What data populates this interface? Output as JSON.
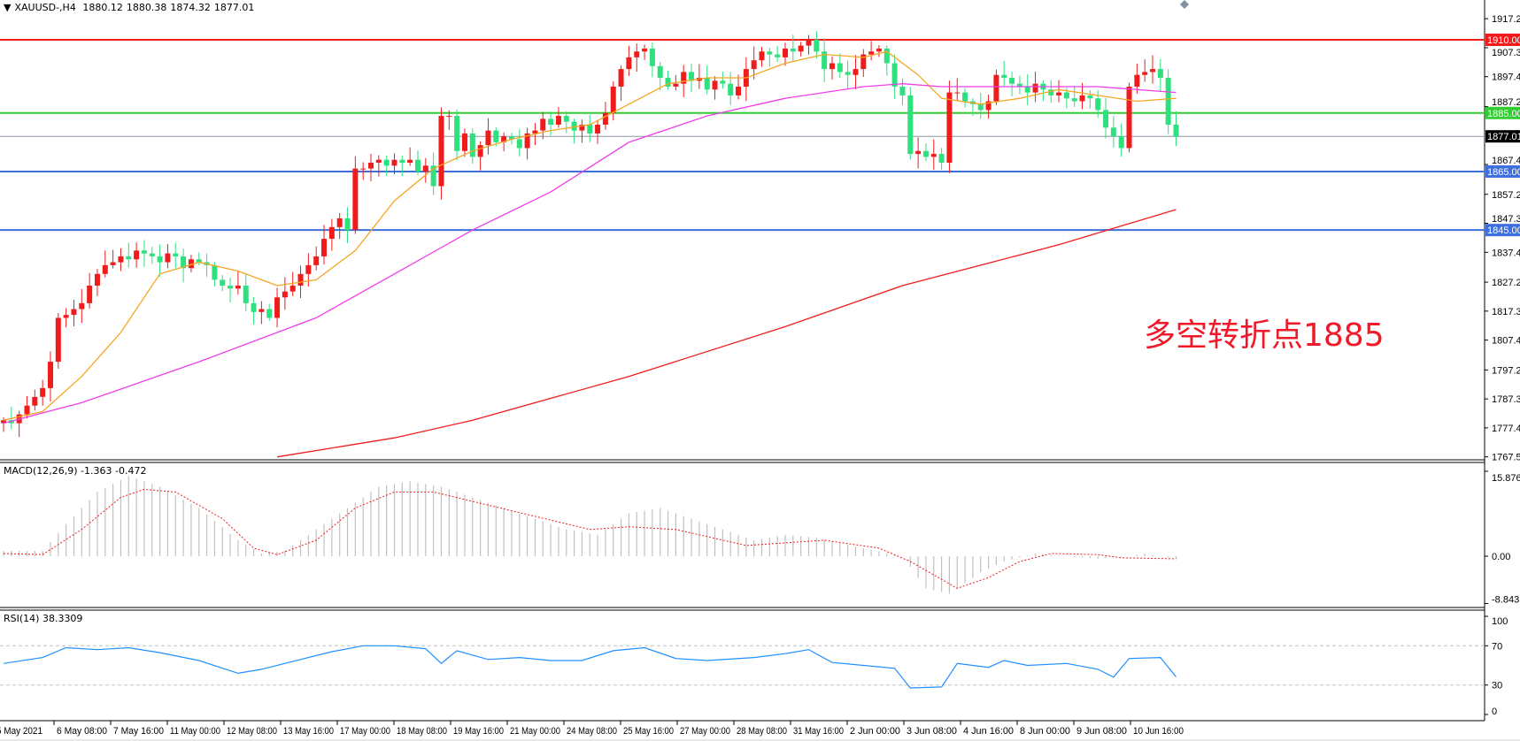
{
  "header": {
    "symbol": "XAUUSD-,H4",
    "open": "1880.12",
    "high": "1880.38",
    "low": "1874.32",
    "close": "1877.01",
    "menu_icon": "triangle-down-icon"
  },
  "colors": {
    "bull_candle": "#f01c1c",
    "bear_candle": "#2ee07e",
    "ma_fast": "#f5a623",
    "ma_mid": "#ee3ee8",
    "ma_slow": "#f01c1c",
    "level_resistance": "#f01c1c",
    "level_pivot": "#33cc33",
    "level_current": "#8a96a6",
    "level_support": "#3f6fdc",
    "macd_hist": "#c0c0c0",
    "macd_signal": "#f01c1c",
    "rsi_line": "#1e90ff",
    "annotation": "#f0192a"
  },
  "annotation": "多空转折点1885",
  "chart_data": {
    "type": "candlestick",
    "symbol": "XAUUSD-",
    "timeframe": "H4",
    "ylim": [
      1767.5,
      1922
    ],
    "price_ticks": [
      "1917.20",
      "1907.30",
      "1897.40",
      "1887.20",
      "1867.40",
      "1857.20",
      "1847.30",
      "1837.40",
      "1827.20",
      "1817.30",
      "1807.40",
      "1797.20",
      "1787.30",
      "1777.40",
      "1767.50"
    ],
    "time_labels": [
      "5 May 2021",
      "6 May 08:00",
      "7 May 16:00",
      "11 May 00:00",
      "12 May 08:00",
      "13 May 16:00",
      "17 May 00:00",
      "18 May 08:00",
      "19 May 16:00",
      "21 May 00:00",
      "24 May 08:00",
      "25 May 16:00",
      "27 May 00:00",
      "28 May 08:00",
      "31 May 16:00",
      "2 Jun 00:00",
      "3 Jun 08:00",
      "4 Jun 16:00",
      "8 Jun 00:00",
      "9 Jun 08:00",
      "10 Jun 16:00"
    ],
    "closes": [
      1780,
      1779,
      1782,
      1785,
      1788,
      1791,
      1800,
      1815,
      1816,
      1818,
      1820,
      1826,
      1830,
      1833,
      1834,
      1836,
      1835,
      1838,
      1837,
      1836,
      1834,
      1837,
      1836,
      1832,
      1835,
      1834,
      1833,
      1828,
      1826,
      1825,
      1826,
      1820,
      1817,
      1818,
      1815,
      1822,
      1824,
      1826,
      1830,
      1833,
      1836,
      1842,
      1846,
      1849,
      1845,
      1866,
      1866,
      1868,
      1869,
      1867,
      1869,
      1868,
      1869,
      1865,
      1867,
      1860,
      1884,
      1884,
      1872,
      1878,
      1870,
      1874,
      1879,
      1875,
      1877,
      1876,
      1873,
      1878,
      1879,
      1883,
      1881,
      1884,
      1882,
      1879,
      1881,
      1878,
      1881,
      1885,
      1894,
      1900,
      1904,
      1906,
      1907,
      1901,
      1897,
      1894,
      1895,
      1899,
      1896,
      1897,
      1893,
      1896,
      1895,
      1891,
      1894,
      1900,
      1903,
      1906,
      1905,
      1904,
      1907,
      1906,
      1908,
      1910,
      1906,
      1900,
      1902,
      1899,
      1898,
      1900,
      1905,
      1906,
      1907,
      1902,
      1894,
      1891,
      1871,
      1872,
      1870,
      1871,
      1868,
      1892,
      1892,
      1889,
      1888,
      1886,
      1889,
      1898,
      1897,
      1895,
      1894,
      1892,
      1895,
      1893,
      1891,
      1892,
      1890,
      1889,
      1891,
      1890,
      1886,
      1880,
      1877,
      1873,
      1894,
      1898,
      1899,
      1900,
      1897,
      1881,
      1877.01
    ],
    "moving_averages": [
      {
        "color_key": "ma_fast",
        "points": [
          [
            0,
            1780
          ],
          [
            5,
            1783
          ],
          [
            10,
            1795
          ],
          [
            15,
            1810
          ],
          [
            20,
            1830
          ],
          [
            25,
            1834
          ],
          [
            30,
            1831
          ],
          [
            35,
            1826
          ],
          [
            40,
            1828
          ],
          [
            45,
            1838
          ],
          [
            50,
            1855
          ],
          [
            55,
            1866
          ],
          [
            60,
            1872
          ],
          [
            65,
            1876
          ],
          [
            70,
            1879
          ],
          [
            75,
            1881
          ],
          [
            80,
            1888
          ],
          [
            85,
            1895
          ],
          [
            90,
            1897
          ],
          [
            95,
            1897
          ],
          [
            100,
            1902
          ],
          [
            105,
            1905
          ],
          [
            110,
            1904
          ],
          [
            113,
            1906
          ],
          [
            117,
            1898
          ],
          [
            120,
            1890
          ],
          [
            125,
            1888
          ],
          [
            130,
            1890
          ],
          [
            135,
            1893
          ],
          [
            140,
            1891
          ],
          [
            145,
            1889
          ],
          [
            150,
            1890
          ]
        ]
      },
      {
        "color_key": "ma_mid",
        "points": [
          [
            0,
            1779
          ],
          [
            10,
            1786
          ],
          [
            25,
            1800
          ],
          [
            40,
            1815
          ],
          [
            50,
            1830
          ],
          [
            60,
            1845
          ],
          [
            70,
            1858
          ],
          [
            80,
            1875
          ],
          [
            90,
            1884
          ],
          [
            100,
            1890
          ],
          [
            110,
            1894
          ],
          [
            115,
            1895
          ],
          [
            120,
            1894
          ],
          [
            130,
            1894
          ],
          [
            140,
            1894
          ],
          [
            150,
            1892
          ]
        ]
      },
      {
        "color_key": "ma_slow",
        "points": [
          [
            35,
            1767.5
          ],
          [
            50,
            1774
          ],
          [
            60,
            1780
          ],
          [
            80,
            1795
          ],
          [
            100,
            1812
          ],
          [
            115,
            1826
          ],
          [
            125,
            1833
          ],
          [
            135,
            1840
          ],
          [
            145,
            1848
          ],
          [
            150,
            1852
          ]
        ]
      }
    ],
    "levels": [
      {
        "value": 1910.0,
        "label": "1910.00",
        "color_key": "level_resistance"
      },
      {
        "value": 1885.0,
        "label": "1885.00",
        "color_key": "level_pivot"
      },
      {
        "value": 1877.01,
        "label": "1877.01",
        "color_key": "level_current"
      },
      {
        "value": 1865.0,
        "label": "1865.00",
        "color_key": "level_support"
      },
      {
        "value": 1845.0,
        "label": "1845.00",
        "color_key": "level_support"
      }
    ],
    "macd": {
      "label": "MACD(12,26,9) -1.363 -0.472",
      "ylim": [
        -8.843,
        15.876
      ],
      "ticks": [
        "15.876",
        "0.00",
        "-8.843"
      ],
      "histogram": [
        [
          0,
          1
        ],
        [
          5,
          1
        ],
        [
          8,
          6
        ],
        [
          12,
          12
        ],
        [
          16,
          15
        ],
        [
          20,
          13
        ],
        [
          25,
          9
        ],
        [
          30,
          3
        ],
        [
          33,
          0.5
        ],
        [
          36,
          1
        ],
        [
          40,
          5
        ],
        [
          44,
          9
        ],
        [
          48,
          13
        ],
        [
          52,
          14
        ],
        [
          56,
          13
        ],
        [
          60,
          11
        ],
        [
          64,
          9
        ],
        [
          68,
          7
        ],
        [
          72,
          5
        ],
        [
          76,
          4
        ],
        [
          80,
          8
        ],
        [
          84,
          9
        ],
        [
          88,
          7
        ],
        [
          92,
          5
        ],
        [
          96,
          3
        ],
        [
          100,
          4
        ],
        [
          104,
          3.5
        ],
        [
          110,
          1.5
        ],
        [
          115,
          0
        ],
        [
          118,
          -6
        ],
        [
          121,
          -7
        ],
        [
          125,
          -3
        ],
        [
          128,
          -1
        ],
        [
          132,
          0.5
        ],
        [
          136,
          0
        ],
        [
          140,
          -0.5
        ],
        [
          144,
          0
        ],
        [
          146,
          0.5
        ],
        [
          150,
          -0.5
        ]
      ],
      "signal": [
        [
          0,
          0.5
        ],
        [
          5,
          0.3
        ],
        [
          10,
          5
        ],
        [
          15,
          11
        ],
        [
          18,
          12.5
        ],
        [
          22,
          12
        ],
        [
          28,
          7
        ],
        [
          32,
          1.5
        ],
        [
          35,
          0.3
        ],
        [
          40,
          3
        ],
        [
          45,
          9
        ],
        [
          50,
          12
        ],
        [
          55,
          12
        ],
        [
          65,
          8.5
        ],
        [
          75,
          5
        ],
        [
          80,
          5.5
        ],
        [
          86,
          5
        ],
        [
          95,
          2
        ],
        [
          100,
          2.5
        ],
        [
          105,
          3
        ],
        [
          112,
          1.5
        ],
        [
          116,
          -1
        ],
        [
          122,
          -6
        ],
        [
          126,
          -4
        ],
        [
          130,
          -1
        ],
        [
          134,
          0.5
        ],
        [
          140,
          0.3
        ],
        [
          143,
          -0.3
        ],
        [
          150,
          -0.5
        ]
      ]
    },
    "rsi": {
      "label": "RSI(14) 38.3309",
      "ylim": [
        0,
        100
      ],
      "ticks": [
        "100",
        "70",
        "30",
        "0"
      ],
      "levels": [
        70,
        30
      ],
      "values": [
        [
          0,
          52
        ],
        [
          5,
          58
        ],
        [
          8,
          68
        ],
        [
          12,
          66
        ],
        [
          16,
          68
        ],
        [
          20,
          63
        ],
        [
          25,
          55
        ],
        [
          30,
          42
        ],
        [
          33,
          46
        ],
        [
          38,
          56
        ],
        [
          42,
          64
        ],
        [
          46,
          70
        ],
        [
          50,
          70
        ],
        [
          54,
          67
        ],
        [
          56,
          52
        ],
        [
          58,
          65
        ],
        [
          62,
          56
        ],
        [
          66,
          58
        ],
        [
          70,
          55
        ],
        [
          74,
          55
        ],
        [
          78,
          65
        ],
        [
          82,
          68
        ],
        [
          86,
          57
        ],
        [
          90,
          55
        ],
        [
          96,
          58
        ],
        [
          100,
          62
        ],
        [
          103,
          66
        ],
        [
          106,
          53
        ],
        [
          110,
          50
        ],
        [
          114,
          47
        ],
        [
          116,
          27
        ],
        [
          120,
          28
        ],
        [
          122,
          52
        ],
        [
          126,
          48
        ],
        [
          128,
          55
        ],
        [
          131,
          50
        ],
        [
          136,
          52
        ],
        [
          140,
          46
        ],
        [
          142,
          38
        ],
        [
          144,
          57
        ],
        [
          148,
          58
        ],
        [
          150,
          38.33
        ]
      ]
    }
  }
}
